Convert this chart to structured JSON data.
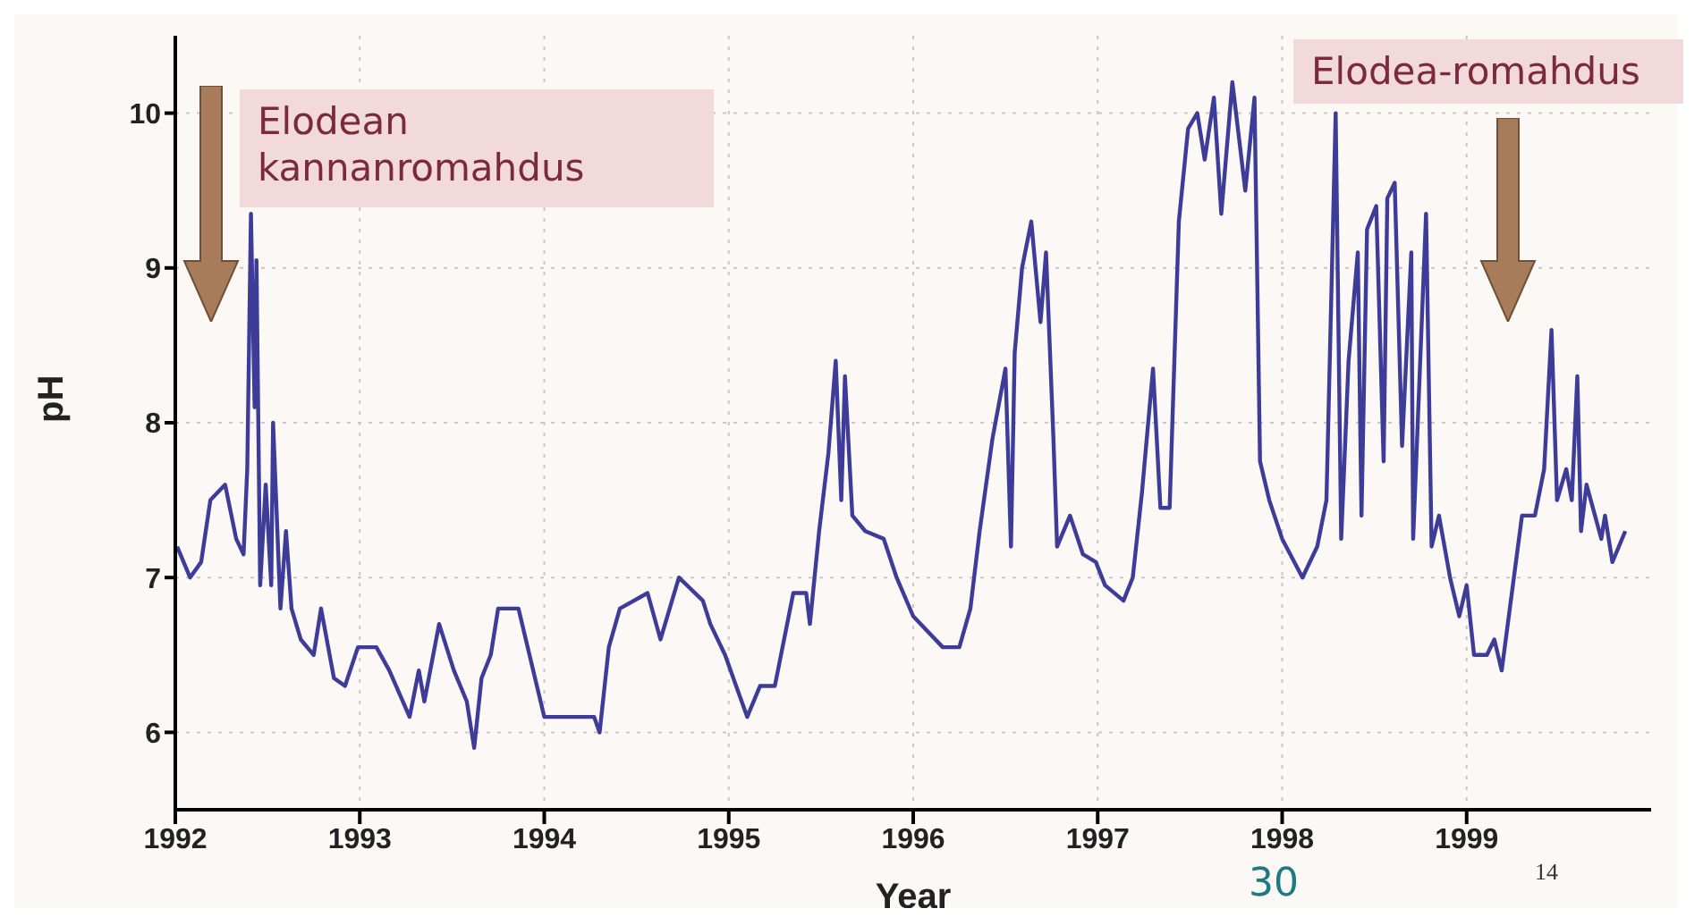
{
  "chart_data": {
    "type": "line",
    "xlabel": "Year",
    "ylabel": "pH",
    "xlim": [
      1992,
      2000
    ],
    "xticks": [
      1992,
      1993,
      1994,
      1995,
      1996,
      1997,
      1998,
      1999
    ],
    "ylim": [
      5.5,
      10.5
    ],
    "yticks": [
      6,
      7,
      8,
      9,
      10
    ],
    "grid": true,
    "marker": "none",
    "line_style": "solid",
    "x": [
      1992.01,
      1992.08,
      1992.14,
      1992.19,
      1992.27,
      1992.33,
      1992.37,
      1992.39,
      1992.41,
      1992.43,
      1992.44,
      1992.46,
      1992.49,
      1992.52,
      1992.53,
      1992.57,
      1992.6,
      1992.63,
      1992.68,
      1992.75,
      1992.79,
      1992.86,
      1992.92,
      1992.99,
      1993.09,
      1993.16,
      1993.27,
      1993.32,
      1993.35,
      1993.43,
      1993.51,
      1993.58,
      1993.62,
      1993.66,
      1993.71,
      1993.75,
      1993.86,
      1994.0,
      1994.27,
      1994.3,
      1994.35,
      1994.41,
      1994.56,
      1994.63,
      1994.73,
      1994.86,
      1994.9,
      1994.98,
      1995.1,
      1995.17,
      1995.25,
      1995.35,
      1995.42,
      1995.44,
      1995.49,
      1995.54,
      1995.58,
      1995.61,
      1995.63,
      1995.67,
      1995.74,
      1995.84,
      1995.91,
      1996.0,
      1996.16,
      1996.25,
      1996.31,
      1996.36,
      1996.43,
      1996.5,
      1996.53,
      1996.55,
      1996.59,
      1996.64,
      1996.69,
      1996.72,
      1996.76,
      1996.78,
      1996.85,
      1996.92,
      1996.99,
      1997.04,
      1997.14,
      1997.19,
      1997.24,
      1997.3,
      1997.34,
      1997.39,
      1997.44,
      1997.49,
      1997.54,
      1997.58,
      1997.63,
      1997.67,
      1997.73,
      1997.8,
      1997.85,
      1997.88,
      1997.93,
      1998.0,
      1998.11,
      1998.19,
      1998.24,
      1998.29,
      1998.32,
      1998.36,
      1998.41,
      1998.43,
      1998.46,
      1998.51,
      1998.55,
      1998.57,
      1998.61,
      1998.65,
      1998.7,
      1998.71,
      1998.78,
      1998.81,
      1998.85,
      1998.91,
      1998.96,
      1999.0,
      1999.04,
      1999.11,
      1999.15,
      1999.19,
      1999.3,
      1999.37,
      1999.42,
      1999.46,
      1999.49,
      1999.54,
      1999.57,
      1999.6,
      1999.62,
      1999.65,
      1999.73,
      1999.75,
      1999.79,
      1999.86
    ],
    "values": [
      7.2,
      7.0,
      7.1,
      7.5,
      7.6,
      7.25,
      7.15,
      7.7,
      9.35,
      8.1,
      9.05,
      6.95,
      7.6,
      6.95,
      8.0,
      6.8,
      7.3,
      6.8,
      6.6,
      6.5,
      6.8,
      6.35,
      6.3,
      6.55,
      6.55,
      6.4,
      6.1,
      6.4,
      6.2,
      6.7,
      6.4,
      6.2,
      5.9,
      6.35,
      6.5,
      6.8,
      6.8,
      6.1,
      6.1,
      6.0,
      6.55,
      6.8,
      6.9,
      6.6,
      7.0,
      6.85,
      6.7,
      6.5,
      6.1,
      6.3,
      6.3,
      6.9,
      6.9,
      6.7,
      7.3,
      7.8,
      8.4,
      7.5,
      8.3,
      7.4,
      7.3,
      7.25,
      7.0,
      6.75,
      6.55,
      6.55,
      6.8,
      7.3,
      7.9,
      8.35,
      7.2,
      8.45,
      9.0,
      9.3,
      8.65,
      9.1,
      7.9,
      7.2,
      7.4,
      7.15,
      7.1,
      6.95,
      6.85,
      7.0,
      7.55,
      8.35,
      7.45,
      7.45,
      9.3,
      9.9,
      10.0,
      9.7,
      10.1,
      9.35,
      10.2,
      9.5,
      10.1,
      7.75,
      7.5,
      7.25,
      7.0,
      7.2,
      7.5,
      10.0,
      7.25,
      8.4,
      9.1,
      7.4,
      9.25,
      9.4,
      7.75,
      9.45,
      9.55,
      7.85,
      9.1,
      7.25,
      9.35,
      7.2,
      7.4,
      7.0,
      6.75,
      6.95,
      6.5,
      6.5,
      6.6,
      6.4,
      7.4,
      7.4,
      7.7,
      8.6,
      7.5,
      7.7,
      7.5,
      8.3,
      7.3,
      7.6,
      7.25,
      7.4,
      7.1,
      7.3
    ],
    "color": "#3d3d99",
    "annotations": [
      "Elodean kannanromahdus",
      "Elodea-romahdus",
      "30",
      "14"
    ]
  }
}
